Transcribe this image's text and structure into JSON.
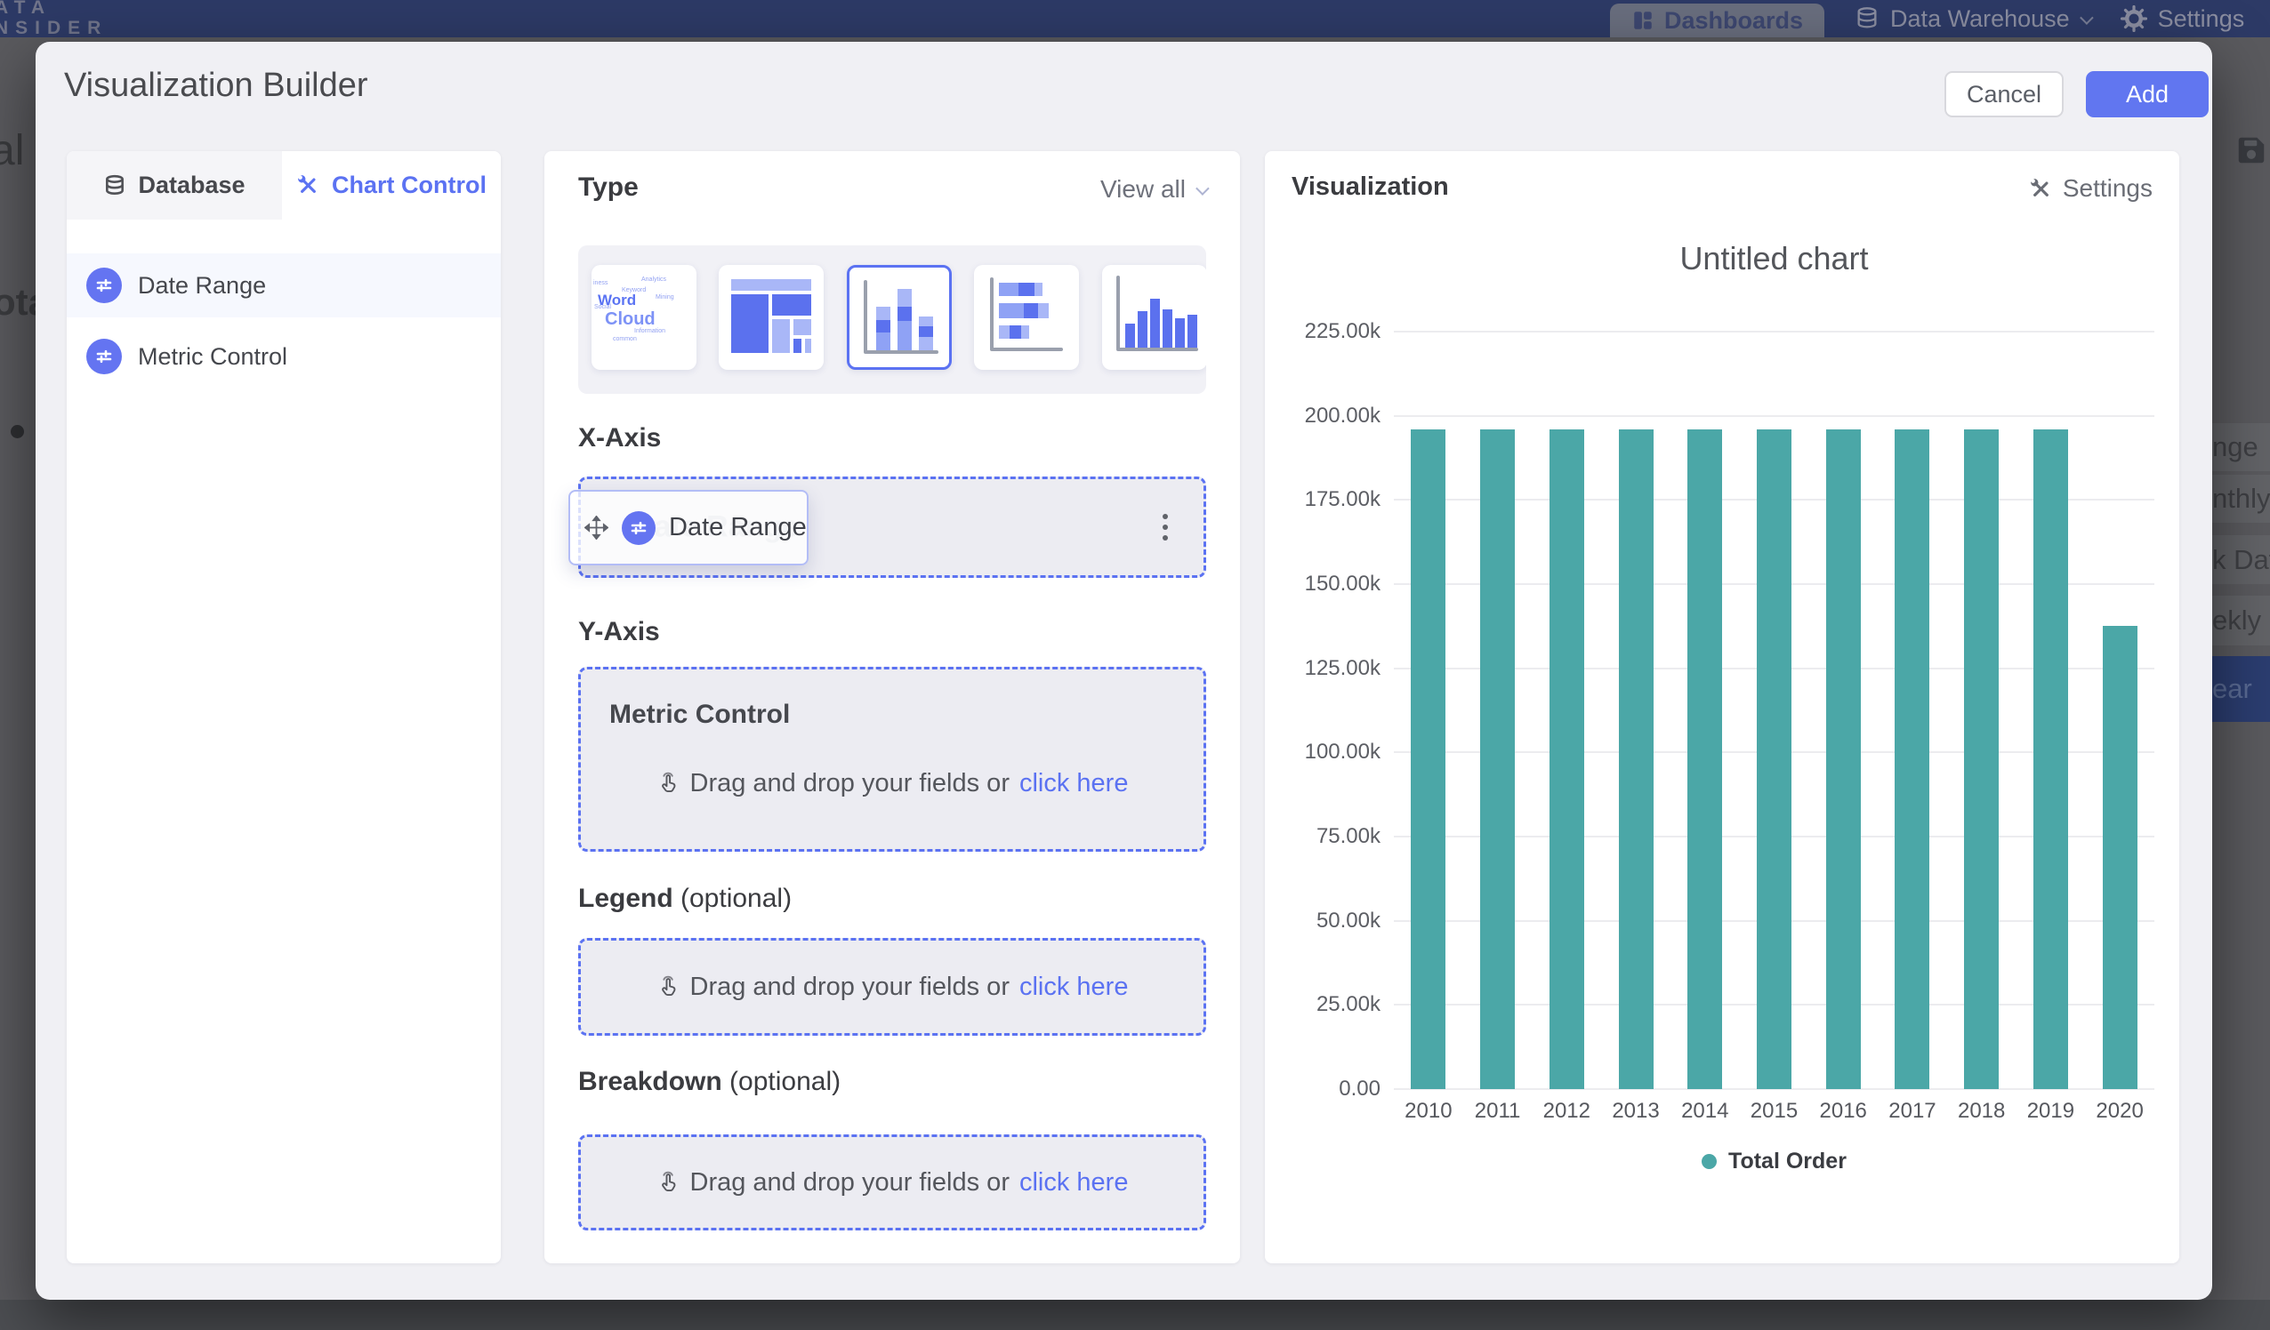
{
  "colors": {
    "accent": "#5b72f2",
    "add_button": "#6176f0",
    "icon_circle": "#6474f1",
    "teal": "#4BA7A7",
    "navy": "#2d3a66"
  },
  "background": {
    "brand": {
      "line1": "ATA",
      "line2": "NSIDER"
    },
    "nav": [
      {
        "label": "Dashboards"
      },
      {
        "label": "Data Warehouse"
      },
      {
        "label": "Settings"
      }
    ],
    "clipped_left_texts": {
      "frag1": "al",
      "frag2": "ota"
    },
    "clipped_menu_items": [
      {
        "label": "nge",
        "highlight": false
      },
      {
        "label": "nthly",
        "highlight": false
      },
      {
        "label": "k Date",
        "highlight": false
      },
      {
        "label": "ekly",
        "highlight": false
      },
      {
        "label": "ear",
        "highlight": true
      }
    ]
  },
  "modal": {
    "title": "Visualization Builder",
    "buttons": {
      "cancel": "Cancel",
      "add": "Add"
    },
    "fields_panel": {
      "tabs": [
        {
          "label": "Database"
        },
        {
          "label": "Chart Control"
        }
      ],
      "fields": [
        {
          "label": "Date Range",
          "selected": true
        },
        {
          "label": "Metric Control",
          "selected": false
        }
      ]
    },
    "builder_panel": {
      "type_section": {
        "label": "Type",
        "view_all": "View all"
      },
      "word_cloud": {
        "big1": "Word",
        "big2": "Cloud",
        "small": [
          "iness",
          "Analytics",
          "Keyword",
          "Mining",
          "Social",
          "common",
          "Information"
        ]
      },
      "x_axis": {
        "label": "X-Axis",
        "chip_label": "Date Range",
        "ghost_label": "Date Range"
      },
      "y_axis": {
        "label": "Y-Axis",
        "group_label": "Metric Control",
        "drop_text": "Drag and drop your fields or",
        "drop_link": "click here"
      },
      "legend": {
        "label": "Legend",
        "suffix": " (optional)",
        "drop_text": "Drag and drop your fields or",
        "drop_link": "click here"
      },
      "breakdown": {
        "label": "Breakdown",
        "suffix": " (optional)",
        "drop_text": "Drag and drop your fields or",
        "drop_link": "click here"
      }
    },
    "viz_panel": {
      "title": "Visualization",
      "settings": "Settings"
    }
  },
  "chart_data": {
    "type": "bar",
    "title": "Untitled chart",
    "categories": [
      "2010",
      "2011",
      "2012",
      "2013",
      "2014",
      "2015",
      "2016",
      "2017",
      "2018",
      "2019",
      "2020"
    ],
    "values": [
      196000,
      196000,
      196000,
      196000,
      196000,
      196000,
      196000,
      196000,
      196000,
      196000,
      137500
    ],
    "series_name": "Total Order",
    "bar_color": "#4BA7A7",
    "ylim": [
      0,
      225000
    ],
    "ytick_step": 25000,
    "ytick_labels": [
      "0.00",
      "25.00k",
      "50.00k",
      "75.00k",
      "100.00k",
      "125.00k",
      "150.00k",
      "175.00k",
      "200.00k",
      "225.00k"
    ],
    "grid": true,
    "legend_position": "bottom"
  }
}
